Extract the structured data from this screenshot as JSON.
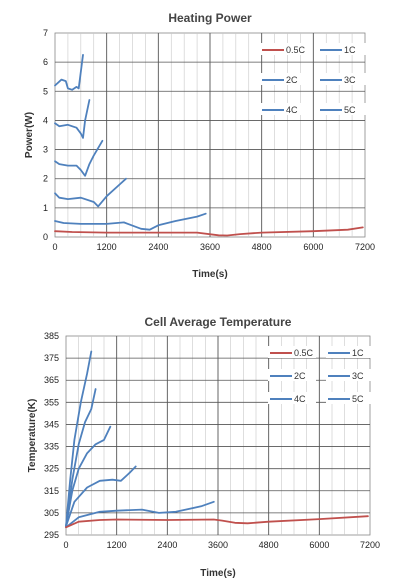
{
  "chart_data": [
    {
      "type": "line",
      "title": "Heating Power",
      "xlabel": "Time(s)",
      "ylabel": "Power(W)",
      "xlim": [
        0,
        7200
      ],
      "ylim": [
        0,
        7
      ],
      "xticks": [
        0,
        1200,
        2400,
        3600,
        4800,
        6000,
        7200
      ],
      "yticks": [
        0,
        1,
        2,
        3,
        4,
        5,
        6,
        7
      ],
      "grid": true,
      "legend": "top-right",
      "series": [
        {
          "name": "0.5C",
          "color": "#c0504d",
          "x": [
            0,
            400,
            1200,
            2400,
            3300,
            3800,
            4000,
            4300,
            4800,
            6000,
            6800,
            7150
          ],
          "y": [
            0.2,
            0.17,
            0.15,
            0.15,
            0.15,
            0.06,
            0.05,
            0.1,
            0.15,
            0.2,
            0.25,
            0.33
          ]
        },
        {
          "name": "1C",
          "color": "#4f81bd",
          "x": [
            0,
            200,
            600,
            1200,
            1600,
            2000,
            2200,
            2400,
            2800,
            3300,
            3500
          ],
          "y": [
            0.55,
            0.48,
            0.45,
            0.45,
            0.5,
            0.28,
            0.25,
            0.4,
            0.55,
            0.7,
            0.8
          ]
        },
        {
          "name": "2C",
          "color": "#4f81bd",
          "x": [
            0,
            100,
            300,
            600,
            900,
            1000,
            1200,
            1500,
            1650
          ],
          "y": [
            1.5,
            1.35,
            1.3,
            1.35,
            1.2,
            1.05,
            1.4,
            1.8,
            2.0
          ]
        },
        {
          "name": "3C",
          "color": "#4f81bd",
          "x": [
            0,
            100,
            300,
            500,
            600,
            700,
            800,
            900,
            1100
          ],
          "y": [
            2.6,
            2.5,
            2.45,
            2.45,
            2.3,
            2.1,
            2.5,
            2.8,
            3.3
          ]
        },
        {
          "name": "4C",
          "color": "#4f81bd",
          "x": [
            0,
            100,
            300,
            500,
            600,
            650,
            700,
            800
          ],
          "y": [
            3.9,
            3.8,
            3.85,
            3.75,
            3.55,
            3.4,
            4.0,
            4.7
          ]
        },
        {
          "name": "5C",
          "color": "#4f81bd",
          "x": [
            0,
            150,
            250,
            300,
            400,
            500,
            550,
            650
          ],
          "y": [
            5.2,
            5.4,
            5.35,
            5.1,
            5.05,
            5.15,
            5.1,
            6.25
          ]
        }
      ]
    },
    {
      "type": "line",
      "title": "Cell Average Temperature",
      "xlabel": "Time(s)",
      "ylabel": "Temperature(K)",
      "xlim": [
        0,
        7200
      ],
      "ylim": [
        295,
        385
      ],
      "xticks": [
        0,
        1200,
        2400,
        3600,
        4800,
        6000,
        7200
      ],
      "yticks": [
        295,
        305,
        315,
        325,
        335,
        345,
        355,
        365,
        375,
        385
      ],
      "grid": true,
      "legend": "top-right",
      "series": [
        {
          "name": "0.5C",
          "color": "#c0504d",
          "x": [
            0,
            300,
            800,
            1200,
            2400,
            3500,
            3700,
            4000,
            4300,
            4800,
            6000,
            7150
          ],
          "y": [
            298.5,
            301,
            301.8,
            302,
            301.8,
            302,
            301.5,
            300.5,
            300.3,
            301,
            302.2,
            303.5
          ]
        },
        {
          "name": "1C",
          "color": "#4f81bd",
          "x": [
            0,
            300,
            800,
            1200,
            1800,
            2200,
            2600,
            3200,
            3500
          ],
          "y": [
            298.5,
            303,
            305.5,
            306,
            306.5,
            305,
            305.5,
            308,
            310
          ]
        },
        {
          "name": "2C",
          "color": "#4f81bd",
          "x": [
            0,
            200,
            500,
            800,
            1100,
            1300,
            1500,
            1650
          ],
          "y": [
            299,
            310,
            316.5,
            319.5,
            320,
            319.5,
            323,
            326
          ]
        },
        {
          "name": "3C",
          "color": "#4f81bd",
          "x": [
            0,
            150,
            300,
            500,
            700,
            900,
            1050
          ],
          "y": [
            299,
            315,
            325,
            332,
            336,
            338,
            344
          ]
        },
        {
          "name": "4C",
          "color": "#4f81bd",
          "x": [
            0,
            150,
            300,
            450,
            600,
            700
          ],
          "y": [
            299,
            320,
            336,
            346,
            352,
            361
          ]
        },
        {
          "name": "5C",
          "color": "#4f81bd",
          "x": [
            0,
            100,
            200,
            350,
            500,
            600
          ],
          "y": [
            299,
            320,
            338,
            355,
            368,
            378
          ]
        }
      ]
    }
  ]
}
